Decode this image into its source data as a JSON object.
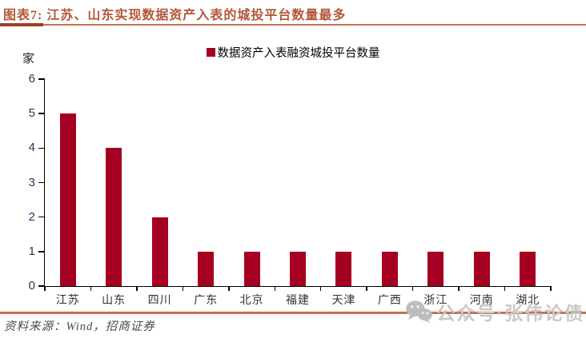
{
  "header": {
    "title": "图表7: 江苏、山东实现数据资产入表的城投平台数量最多"
  },
  "chart_data": {
    "type": "bar",
    "title": "数据资产入表融资城投平台数量",
    "unit": "家",
    "categories": [
      "江苏",
      "山东",
      "四川",
      "广东",
      "北京",
      "福建",
      "天津",
      "广西",
      "浙江",
      "河南",
      "湖北"
    ],
    "values": [
      5,
      4,
      2,
      1,
      1,
      1,
      1,
      1,
      1,
      1,
      1
    ],
    "legend": [
      "数据资产入表融资城投平台数量"
    ],
    "legend_position": "top-center",
    "xlabel": "",
    "ylabel": "家",
    "ylim": [
      0,
      6
    ],
    "ytick_step": 1,
    "grid": false,
    "bar_color": "#A50021"
  },
  "footer": {
    "source": "资料来源：Wind，招商证券"
  },
  "watermark": {
    "icon": "wechat-icon",
    "text": "公众号·张伟论债"
  },
  "colors": {
    "bar": "#A50021",
    "title_text": "#B4573A",
    "rule_line": "#C4714E",
    "rule_stub": "#9E3D20",
    "y_tick_label": "#1F3864",
    "x_tick_label": "#333333",
    "legend_text": "#000000",
    "source_text": "#4a4a4a",
    "watermark": "#C8C8C8"
  }
}
